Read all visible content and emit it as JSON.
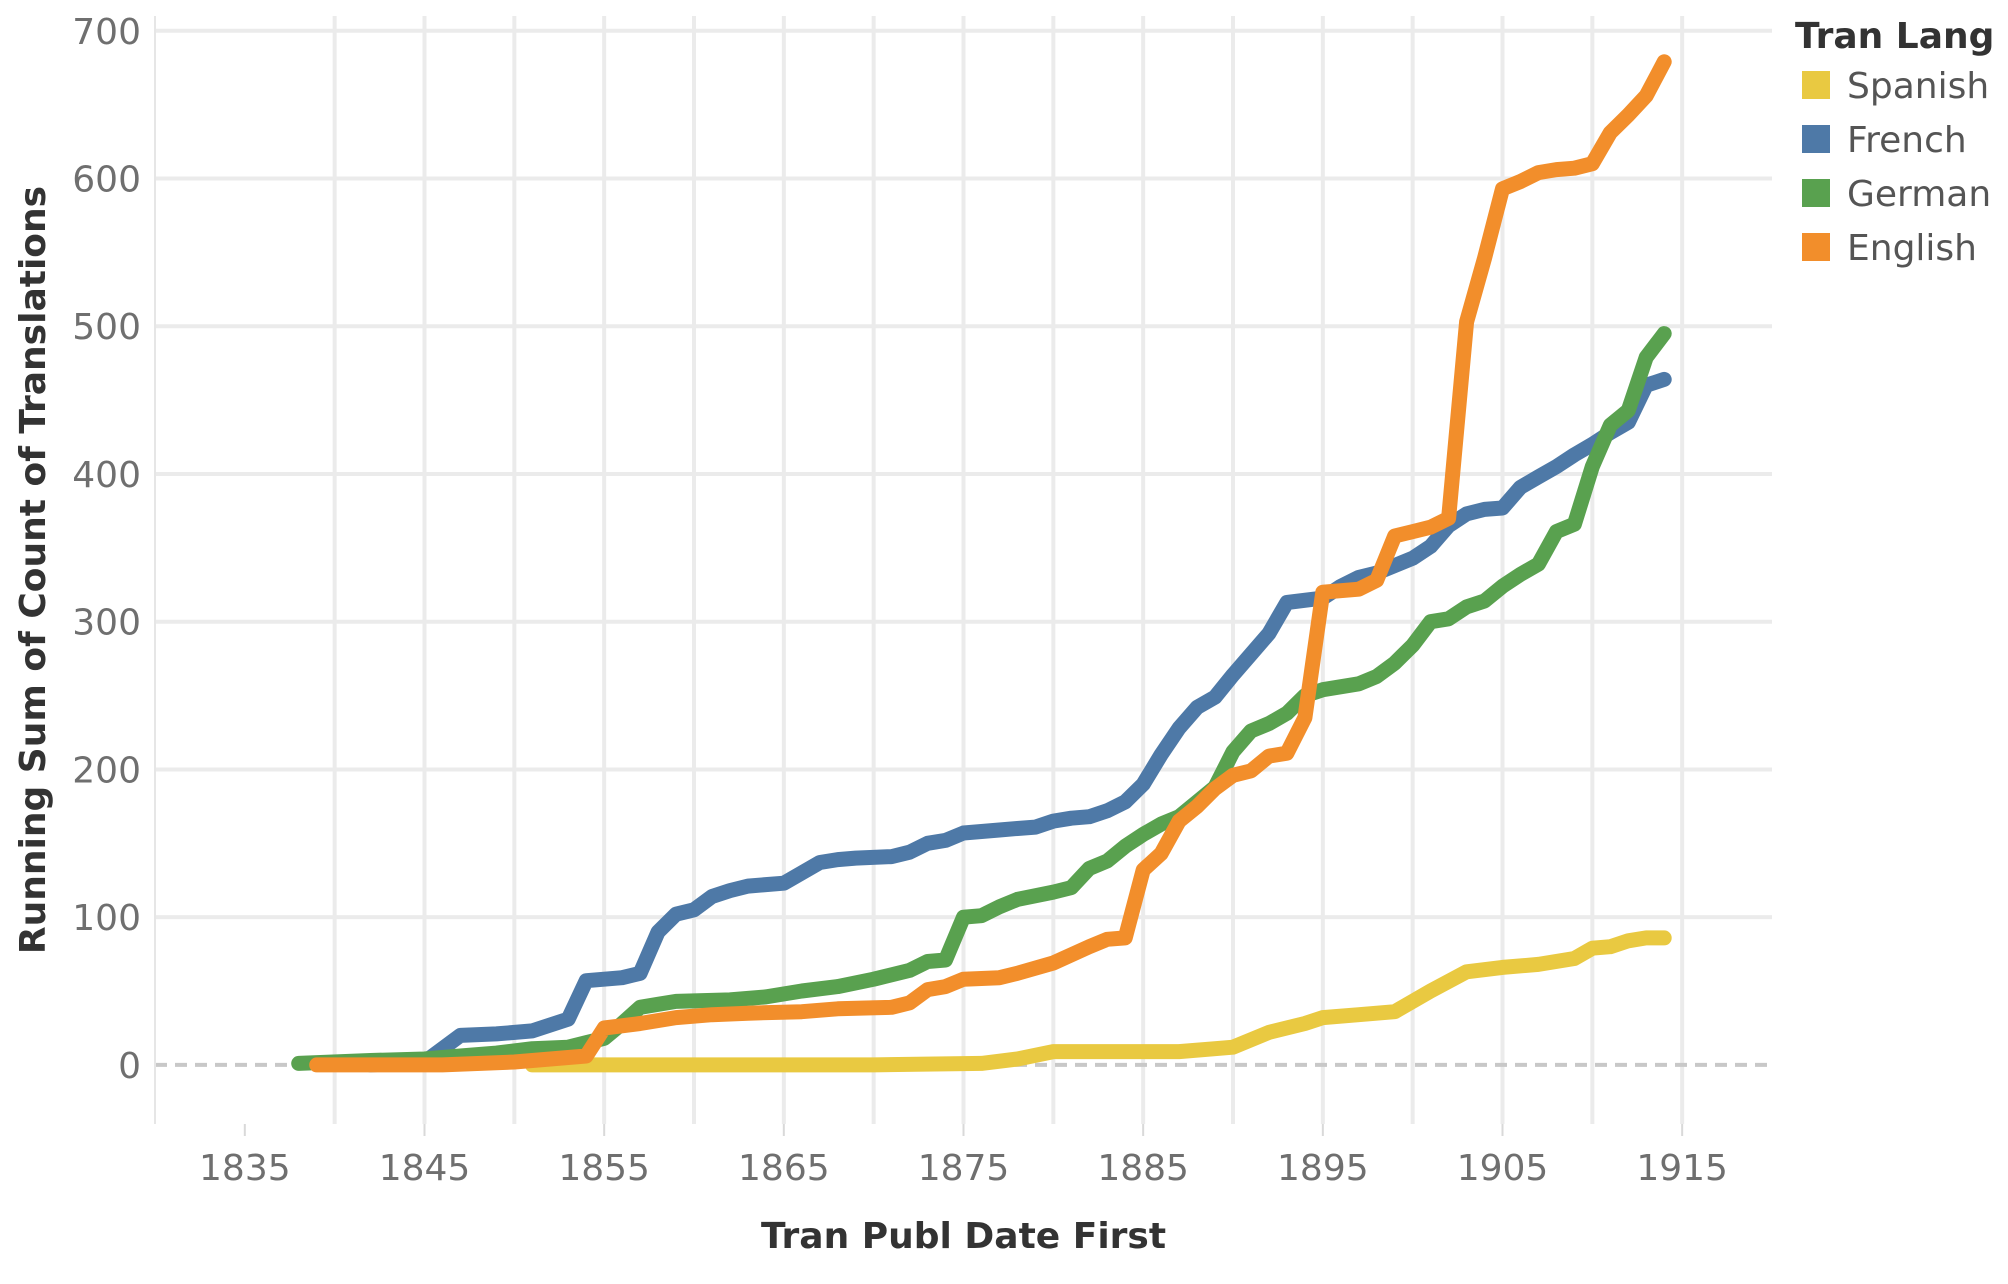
{
  "chart_data": {
    "type": "line",
    "title": "",
    "xlabel": "Tran Publ Date First",
    "ylabel": "Running Sum of Count of Translations",
    "xlim": [
      1830,
      1920
    ],
    "ylim": [
      -40,
      710
    ],
    "x_ticks": [
      "1835",
      "1845",
      "1855",
      "1865",
      "1875",
      "1885",
      "1895",
      "1905",
      "1915"
    ],
    "y_ticks": [
      "0",
      "100",
      "200",
      "300",
      "400",
      "500",
      "600",
      "700"
    ],
    "grid": true,
    "zero_line": "dashed",
    "legend": {
      "title": "Tran Lang",
      "placement": "top-right",
      "entries": [
        "Spanish",
        "French",
        "German",
        "English"
      ]
    },
    "series": [
      {
        "name": "Spanish",
        "color": "#e9c941",
        "points": [
          [
            1851,
            0
          ],
          [
            1855,
            0
          ],
          [
            1860,
            0
          ],
          [
            1865,
            0
          ],
          [
            1870,
            0
          ],
          [
            1876,
            1
          ],
          [
            1878,
            4
          ],
          [
            1880,
            9
          ],
          [
            1882,
            9
          ],
          [
            1885,
            9
          ],
          [
            1887,
            9
          ],
          [
            1889,
            11
          ],
          [
            1890,
            12
          ],
          [
            1892,
            22
          ],
          [
            1894,
            28
          ],
          [
            1895,
            32
          ],
          [
            1897,
            34
          ],
          [
            1899,
            36
          ],
          [
            1901,
            50
          ],
          [
            1903,
            63
          ],
          [
            1905,
            66
          ],
          [
            1907,
            68
          ],
          [
            1909,
            72
          ],
          [
            1910,
            79
          ],
          [
            1911,
            80
          ],
          [
            1912,
            84
          ],
          [
            1913,
            86
          ],
          [
            1914,
            86
          ]
        ]
      },
      {
        "name": "French",
        "color": "#4e79a7",
        "points": [
          [
            1842,
            0
          ],
          [
            1845,
            2
          ],
          [
            1847,
            20
          ],
          [
            1849,
            21
          ],
          [
            1851,
            23
          ],
          [
            1853,
            31
          ],
          [
            1854,
            57
          ],
          [
            1856,
            59
          ],
          [
            1857,
            62
          ],
          [
            1858,
            90
          ],
          [
            1859,
            102
          ],
          [
            1860,
            105
          ],
          [
            1861,
            114
          ],
          [
            1862,
            118
          ],
          [
            1863,
            121
          ],
          [
            1865,
            123
          ],
          [
            1866,
            130
          ],
          [
            1867,
            137
          ],
          [
            1868,
            139
          ],
          [
            1869,
            140
          ],
          [
            1871,
            141
          ],
          [
            1872,
            144
          ],
          [
            1873,
            150
          ],
          [
            1874,
            152
          ],
          [
            1875,
            157
          ],
          [
            1876,
            158
          ],
          [
            1877,
            159
          ],
          [
            1878,
            160
          ],
          [
            1879,
            161
          ],
          [
            1880,
            165
          ],
          [
            1881,
            167
          ],
          [
            1882,
            168
          ],
          [
            1883,
            172
          ],
          [
            1884,
            178
          ],
          [
            1885,
            190
          ],
          [
            1886,
            210
          ],
          [
            1887,
            228
          ],
          [
            1888,
            242
          ],
          [
            1889,
            249
          ],
          [
            1890,
            264
          ],
          [
            1891,
            278
          ],
          [
            1892,
            292
          ],
          [
            1893,
            313
          ],
          [
            1895,
            316
          ],
          [
            1896,
            324
          ],
          [
            1897,
            330
          ],
          [
            1898,
            333
          ],
          [
            1899,
            338
          ],
          [
            1900,
            343
          ],
          [
            1901,
            351
          ],
          [
            1902,
            365
          ],
          [
            1903,
            373
          ],
          [
            1904,
            376
          ],
          [
            1905,
            377
          ],
          [
            1906,
            391
          ],
          [
            1907,
            398
          ],
          [
            1908,
            405
          ],
          [
            1909,
            413
          ],
          [
            1910,
            420
          ],
          [
            1911,
            428
          ],
          [
            1912,
            435
          ],
          [
            1913,
            460
          ],
          [
            1914,
            464
          ]
        ]
      },
      {
        "name": "German",
        "color": "#59a14f",
        "points": [
          [
            1838,
            1
          ],
          [
            1842,
            3
          ],
          [
            1845,
            4
          ],
          [
            1847,
            6
          ],
          [
            1849,
            8
          ],
          [
            1851,
            11
          ],
          [
            1853,
            12
          ],
          [
            1854,
            15
          ],
          [
            1855,
            18
          ],
          [
            1856,
            28
          ],
          [
            1857,
            39
          ],
          [
            1858,
            41
          ],
          [
            1859,
            43
          ],
          [
            1862,
            44
          ],
          [
            1864,
            46
          ],
          [
            1866,
            50
          ],
          [
            1868,
            53
          ],
          [
            1870,
            58
          ],
          [
            1872,
            64
          ],
          [
            1873,
            70
          ],
          [
            1874,
            71
          ],
          [
            1875,
            100
          ],
          [
            1876,
            101
          ],
          [
            1877,
            107
          ],
          [
            1878,
            112
          ],
          [
            1880,
            117
          ],
          [
            1881,
            120
          ],
          [
            1882,
            133
          ],
          [
            1883,
            138
          ],
          [
            1884,
            148
          ],
          [
            1885,
            156
          ],
          [
            1886,
            163
          ],
          [
            1887,
            168
          ],
          [
            1888,
            178
          ],
          [
            1889,
            188
          ],
          [
            1890,
            212
          ],
          [
            1891,
            226
          ],
          [
            1892,
            231
          ],
          [
            1893,
            238
          ],
          [
            1894,
            250
          ],
          [
            1895,
            254
          ],
          [
            1897,
            258
          ],
          [
            1898,
            263
          ],
          [
            1899,
            272
          ],
          [
            1900,
            284
          ],
          [
            1901,
            300
          ],
          [
            1902,
            302
          ],
          [
            1903,
            310
          ],
          [
            1904,
            314
          ],
          [
            1905,
            324
          ],
          [
            1906,
            332
          ],
          [
            1907,
            339
          ],
          [
            1908,
            361
          ],
          [
            1909,
            366
          ],
          [
            1910,
            405
          ],
          [
            1911,
            433
          ],
          [
            1912,
            443
          ],
          [
            1913,
            479
          ],
          [
            1914,
            495
          ]
        ]
      },
      {
        "name": "English",
        "color": "#f28e2b",
        "points": [
          [
            1839,
            0
          ],
          [
            1846,
            0
          ],
          [
            1850,
            2
          ],
          [
            1852,
            4
          ],
          [
            1854,
            6
          ],
          [
            1855,
            25
          ],
          [
            1857,
            28
          ],
          [
            1859,
            32
          ],
          [
            1861,
            34
          ],
          [
            1863,
            35
          ],
          [
            1866,
            36
          ],
          [
            1868,
            38
          ],
          [
            1871,
            39
          ],
          [
            1872,
            42
          ],
          [
            1873,
            51
          ],
          [
            1874,
            53
          ],
          [
            1875,
            58
          ],
          [
            1877,
            59
          ],
          [
            1878,
            62
          ],
          [
            1880,
            69
          ],
          [
            1882,
            80
          ],
          [
            1883,
            85
          ],
          [
            1884,
            86
          ],
          [
            1885,
            132
          ],
          [
            1886,
            143
          ],
          [
            1887,
            165
          ],
          [
            1888,
            175
          ],
          [
            1889,
            187
          ],
          [
            1890,
            196
          ],
          [
            1891,
            199
          ],
          [
            1892,
            209
          ],
          [
            1893,
            211
          ],
          [
            1894,
            235
          ],
          [
            1895,
            320
          ],
          [
            1896,
            321
          ],
          [
            1897,
            322
          ],
          [
            1898,
            328
          ],
          [
            1899,
            358
          ],
          [
            1900,
            361
          ],
          [
            1901,
            364
          ],
          [
            1902,
            370
          ],
          [
            1903,
            503
          ],
          [
            1904,
            546
          ],
          [
            1905,
            593
          ],
          [
            1906,
            598
          ],
          [
            1907,
            604
          ],
          [
            1908,
            606
          ],
          [
            1909,
            607
          ],
          [
            1910,
            610
          ],
          [
            1911,
            631
          ],
          [
            1912,
            643
          ],
          [
            1913,
            656
          ],
          [
            1914,
            679
          ]
        ]
      }
    ]
  }
}
